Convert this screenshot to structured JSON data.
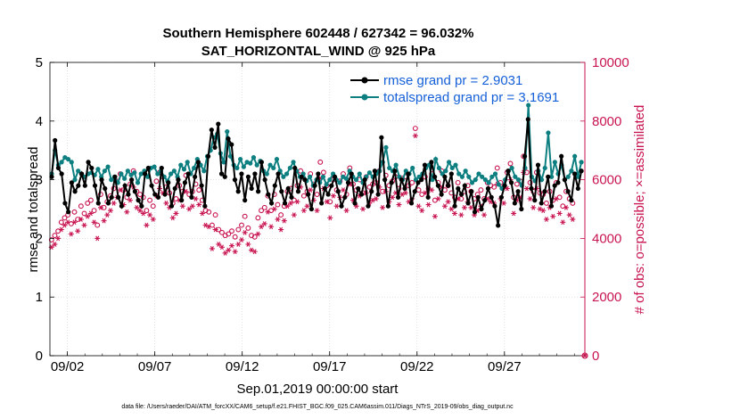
{
  "chart_data": {
    "type": "line",
    "title_line1": "Southern Hemisphere 602448 / 627342 = 96.032%",
    "title_line2": "SAT_HORIZONTAL_WIND @ 925 hPa",
    "xlabel": "Sep.01,2019 00:00:00 start",
    "ylabel_left": "rmse and totalspread",
    "ylabel_right": "# of obs: o=possible; ×=assimilated",
    "footer": "data file: /Users/raeder/DAI/ATM_forcXX/CAM6_setup/f.e21.FHIST_BGC.f09_025.CAM6assim.011/Diags_NTrS_2019-09/obs_diag_output.nc",
    "xlim": [
      1,
      31.6
    ],
    "ylim_left": [
      0,
      5
    ],
    "ylim_right": [
      0,
      10000
    ],
    "x_ticks": [
      2,
      7,
      12,
      17,
      22,
      27
    ],
    "x_tick_labels": [
      "09/02",
      "09/07",
      "09/12",
      "09/17",
      "09/22",
      "09/27"
    ],
    "y_left_ticks": [
      0,
      1,
      2,
      3,
      4,
      5
    ],
    "y_left_tick_labels": [
      "0",
      "1",
      "2",
      "3",
      "4",
      "5"
    ],
    "y_right_ticks": [
      0,
      2000,
      4000,
      6000,
      8000,
      10000
    ],
    "y_right_tick_labels": [
      "0",
      "2000",
      "4000",
      "6000",
      "8000",
      "10000"
    ],
    "grid": true,
    "legend_position": "top-right",
    "colors": {
      "rmse": "#000000",
      "totalspread": "#0e7f80",
      "obs": "#c8144f",
      "legend_text": "#1560d8"
    },
    "series": [
      {
        "name": "rmse grand pr = 2.9031",
        "values": [
          3.05,
          3.67,
          3.2,
          3.1,
          2.6,
          2.45,
          2.95,
          2.8,
          2.9,
          3.1,
          2.9,
          3.3,
          3.2,
          2.9,
          2.6,
          3.0,
          2.85,
          2.6,
          2.7,
          3.05,
          2.7,
          2.55,
          2.9,
          2.75,
          3.0,
          2.8,
          2.65,
          2.55,
          3.1,
          3.2,
          2.9,
          2.75,
          2.7,
          3.2,
          2.75,
          2.95,
          2.55,
          2.85,
          3.0,
          2.65,
          2.95,
          3.1,
          2.7,
          3.05,
          3.3,
          2.9,
          2.55,
          3.4,
          3.85,
          3.55,
          3.95,
          3.1,
          3.05,
          3.7,
          3.6,
          3.0,
          2.8,
          3.1,
          2.65,
          3.05,
          2.85,
          3.1,
          2.8,
          3.3,
          3.0,
          2.75,
          2.6,
          2.9,
          3.1,
          2.8,
          2.6,
          2.85,
          2.7,
          3.2,
          2.8,
          3.05,
          3.0,
          2.75,
          2.5,
          2.9,
          3.1,
          2.6,
          2.85,
          2.75,
          2.9,
          3.05,
          2.8,
          2.55,
          2.7,
          2.95,
          3.1,
          2.6,
          2.85,
          2.75,
          3.0,
          2.55,
          2.8,
          3.15,
          2.75,
          3.72,
          3.0,
          2.55,
          2.95,
          3.15,
          2.7,
          3.0,
          2.85,
          3.1,
          2.6,
          2.8,
          2.95,
          3.0,
          3.25,
          2.7,
          3.3,
          3.05,
          2.9,
          2.75,
          3.05,
          2.9,
          3.1,
          2.55,
          2.85,
          2.75,
          2.9,
          2.6,
          2.8,
          2.45,
          2.7,
          2.5,
          2.65,
          2.85,
          2.7,
          2.55,
          2.22,
          2.7,
          2.9,
          3.15,
          2.95,
          2.6,
          2.8,
          2.5,
          3.4,
          4.03,
          2.85,
          2.65,
          3.25,
          2.6,
          2.8,
          3.05,
          2.55,
          2.9,
          2.95,
          3.4,
          3.0,
          2.8,
          2.65,
          3.1,
          2.85,
          3.15
        ],
        "grand_mean": 2.9031
      },
      {
        "name": "totalspread grand pr = 3.1691",
        "values": [
          3.1,
          3.5,
          3.25,
          3.3,
          3.38,
          3.35,
          3.3,
          3.0,
          3.15,
          3.1,
          3.05,
          3.1,
          3.12,
          3.08,
          3.18,
          3.05,
          3.15,
          3.22,
          3.0,
          3.05,
          2.95,
          3.1,
          3.02,
          3.15,
          3.08,
          3.12,
          2.95,
          3.1,
          3.15,
          3.05,
          3.2,
          3.22,
          3.1,
          3.15,
          3.05,
          2.98,
          3.1,
          3.15,
          3.05,
          3.25,
          3.18,
          3.3,
          3.1,
          3.2,
          3.35,
          3.25,
          3.15,
          3.4,
          3.5,
          3.72,
          3.78,
          3.45,
          3.3,
          3.82,
          3.4,
          3.25,
          3.2,
          3.35,
          3.22,
          3.3,
          3.28,
          3.38,
          3.25,
          3.32,
          3.15,
          3.1,
          3.25,
          3.2,
          3.35,
          3.15,
          3.05,
          3.1,
          3.2,
          3.3,
          3.15,
          3.05,
          3.1,
          2.98,
          3.05,
          2.9,
          3.0,
          2.95,
          3.05,
          2.92,
          3.0,
          3.1,
          3.0,
          2.95,
          3.05,
          3.02,
          3.15,
          3.05,
          3.0,
          3.1,
          2.95,
          3.05,
          3.12,
          3.05,
          3.1,
          3.15,
          3.3,
          3.55,
          3.2,
          3.15,
          3.25,
          3.05,
          3.0,
          3.15,
          3.1,
          3.2,
          3.0,
          3.05,
          3.1,
          3.2,
          3.25,
          3.0,
          3.35,
          3.2,
          3.1,
          3.15,
          3.3,
          3.2,
          3.25,
          3.1,
          3.05,
          3.15,
          3.05,
          2.95,
          3.0,
          3.1,
          3.05,
          3.0,
          2.95,
          3.05,
          3.1,
          2.92,
          2.85,
          3.0,
          3.15,
          3.2,
          3.05,
          3.0,
          2.9,
          3.2,
          4.27,
          3.05,
          2.98,
          3.15,
          3.0,
          3.2,
          3.8,
          3.05,
          3.3,
          3.1,
          3.25,
          3.0,
          3.05,
          3.15,
          3.4,
          3.05,
          3.3
        ],
        "grand_mean": 3.1691
      }
    ],
    "obs_possible": [
      3950,
      4100,
      4250,
      4550,
      4700,
      4800,
      4500,
      4900,
      4650,
      5100,
      4850,
      5200,
      5300,
      4950,
      4450,
      5500,
      5050,
      5250,
      5450,
      5700,
      5950,
      6200,
      5650,
      5400,
      5850,
      6300,
      5600,
      5500,
      5400,
      4950,
      5300,
      5100,
      5950,
      6250,
      6100,
      5750,
      5550,
      5200,
      5350,
      5800,
      5600,
      6150,
      5500,
      5600,
      5850,
      5650,
      5300,
      4950,
      4900,
      4450,
      4800,
      4300,
      4200,
      4100,
      4150,
      4250,
      4050,
      4300,
      4450,
      4750,
      4350,
      4100,
      4050,
      4700,
      4950,
      5050,
      5450,
      4950,
      5500,
      5150,
      4800,
      5100,
      5600,
      5700,
      5300,
      5800,
      6300,
      5450,
      5600,
      6200,
      5850,
      5500,
      6600,
      6250,
      5800,
      5250,
      6000,
      5650,
      5950,
      6200,
      5500,
      6400,
      5850,
      5650,
      6000,
      5550,
      6100,
      5750,
      5850,
      5900,
      6300,
      5600,
      6150,
      5800,
      5950,
      6100,
      5700,
      6050,
      6100,
      5800,
      5900,
      7750,
      5650,
      5500,
      6100,
      5700,
      6200,
      5300,
      5900,
      6300,
      5650,
      5800,
      5550,
      5400,
      5900,
      5350,
      5600,
      5800,
      5600,
      5350,
      5500,
      5650,
      5350,
      5900,
      5800,
      5750,
      6400,
      5900,
      5750,
      6250,
      6550,
      5400,
      5850,
      5950,
      6800,
      6250,
      5900,
      5600,
      6250,
      5550,
      5500,
      5200,
      5600,
      5300,
      5900,
      5400,
      5100,
      5600,
      5350,
      5200
    ],
    "obs_assimilated": [
      3700,
      3800,
      4000,
      4300,
      4450,
      4550,
      4150,
      4550,
      4250,
      4650,
      4450,
      4750,
      4850,
      4550,
      4000,
      5050,
      4600,
      4800,
      4950,
      5200,
      5400,
      5650,
      5150,
      4900,
      5300,
      5750,
      5050,
      4950,
      4850,
      4450,
      4800,
      4650,
      5450,
      5700,
      5550,
      5200,
      5050,
      4700,
      4850,
      5300,
      5100,
      5600,
      5000,
      5100,
      5350,
      5150,
      4850,
      4450,
      4400,
      3650,
      4300,
      3800,
      3700,
      3500,
      3600,
      3750,
      3550,
      3800,
      3950,
      4200,
      3800,
      3600,
      3550,
      4150,
      4400,
      4500,
      4900,
      4400,
      5000,
      4650,
      4300,
      4600,
      5100,
      5200,
      4800,
      5250,
      5750,
      4950,
      5100,
      5650,
      5300,
      4950,
      6050,
      5700,
      5250,
      4700,
      5450,
      5100,
      5400,
      5650,
      4950,
      5850,
      5300,
      5100,
      5450,
      5000,
      5550,
      5200,
      5300,
      5350,
      5750,
      5050,
      5600,
      5250,
      5400,
      5550,
      5150,
      5500,
      5550,
      5250,
      5350,
      7500,
      5100,
      4950,
      5550,
      5150,
      5650,
      4750,
      5350,
      5750,
      5100,
      5250,
      5000,
      4850,
      5350,
      4800,
      5050,
      5250,
      5050,
      4800,
      4950,
      5100,
      4800,
      5350,
      5250,
      5200,
      5850,
      5350,
      5200,
      5700,
      6000,
      4850,
      5300,
      5400,
      6250,
      5700,
      5350,
      5050,
      5700,
      5000,
      4950,
      4650,
      5050,
      4750,
      5350,
      4850,
      4550,
      5050,
      4800,
      4650
    ],
    "obs_zero_marker": {
      "x": 31.6,
      "value": 0
    }
  }
}
